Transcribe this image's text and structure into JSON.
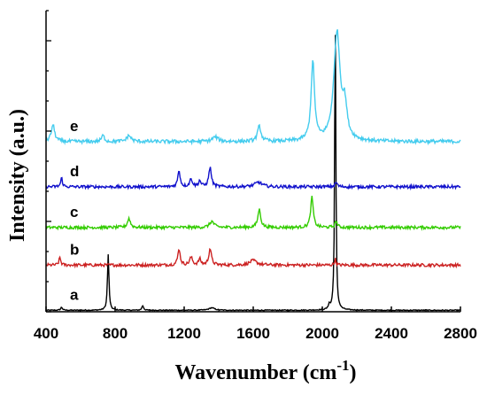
{
  "chart_data": {
    "type": "line",
    "title": "",
    "xlabel": "Wavenumber (cm",
    "xlabel_sup": "-1",
    "xlabel_close": ")",
    "ylabel": "Intensity (a.u.)",
    "xlim": [
      400,
      2800
    ],
    "ylim": [
      0,
      10
    ],
    "x_ticks": [
      "400",
      "800",
      "1200",
      "1600",
      "2000",
      "2400",
      "2800"
    ],
    "y_ticks_labeled": false,
    "grid": false,
    "legend": "none",
    "series": [
      {
        "name": "a",
        "color": "#000000",
        "baseline": 0.05,
        "noise": 0.015,
        "peaks": [
          [
            490,
            0.1,
            6
          ],
          [
            760,
            1.85,
            5
          ],
          [
            960,
            0.15,
            6
          ],
          [
            1360,
            0.08,
            20
          ],
          [
            2040,
            0.15,
            5
          ],
          [
            2075,
            9.7,
            4
          ]
        ]
      },
      {
        "name": "b",
        "color": "#cc2222",
        "baseline": 1.55,
        "noise": 0.05,
        "peaks": [
          [
            480,
            0.25,
            6
          ],
          [
            1170,
            0.55,
            8
          ],
          [
            1240,
            0.25,
            10
          ],
          [
            1290,
            0.2,
            8
          ],
          [
            1350,
            0.55,
            9
          ],
          [
            1600,
            0.15,
            25
          ],
          [
            2075,
            0.2,
            5
          ]
        ]
      },
      {
        "name": "c",
        "color": "#33cc00",
        "baseline": 2.8,
        "noise": 0.05,
        "peaks": [
          [
            880,
            0.3,
            10
          ],
          [
            1360,
            0.2,
            15
          ],
          [
            1635,
            0.6,
            10
          ],
          [
            1940,
            1.0,
            9
          ],
          [
            2080,
            0.2,
            8
          ]
        ]
      },
      {
        "name": "d",
        "color": "#1111cc",
        "baseline": 4.15,
        "noise": 0.05,
        "peaks": [
          [
            490,
            0.3,
            6
          ],
          [
            1170,
            0.55,
            8
          ],
          [
            1240,
            0.25,
            10
          ],
          [
            1290,
            0.2,
            8
          ],
          [
            1350,
            0.65,
            9
          ],
          [
            1630,
            0.15,
            25
          ],
          [
            2080,
            0.15,
            8
          ]
        ]
      },
      {
        "name": "e",
        "color": "#44ccee",
        "baseline": 5.65,
        "noise": 0.06,
        "peaks": [
          [
            440,
            0.55,
            12
          ],
          [
            730,
            0.2,
            10
          ],
          [
            880,
            0.2,
            15
          ],
          [
            1380,
            0.15,
            20
          ],
          [
            1635,
            0.5,
            12
          ],
          [
            1945,
            2.6,
            12
          ],
          [
            2085,
            3.6,
            22
          ],
          [
            2130,
            1.0,
            15
          ]
        ]
      }
    ]
  }
}
